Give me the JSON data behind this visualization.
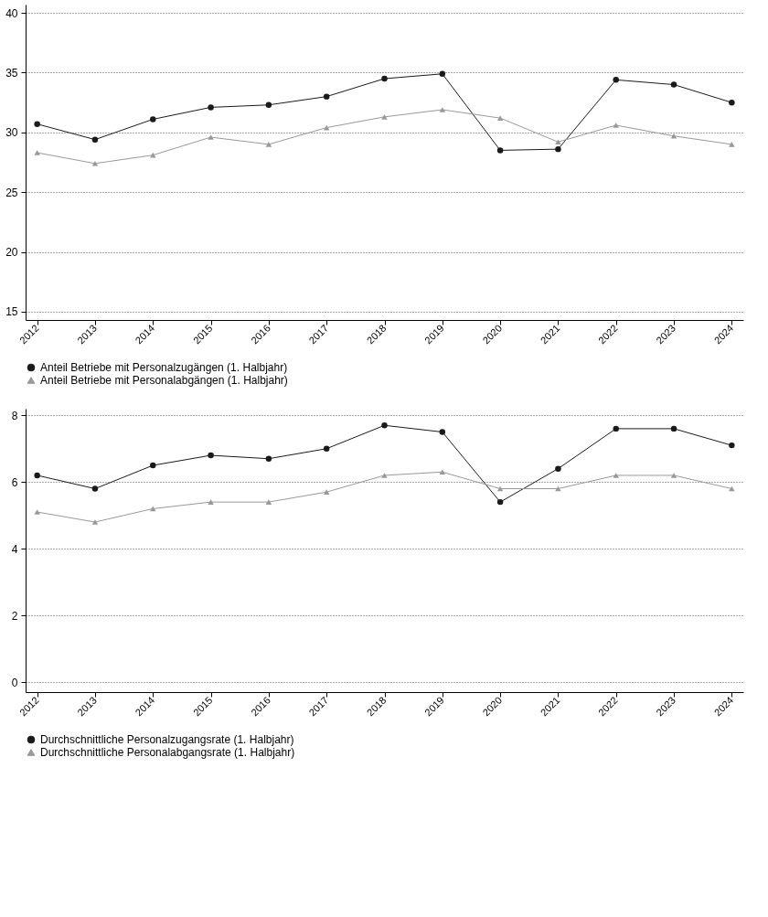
{
  "chart_data": [
    {
      "type": "line",
      "x": [
        2012,
        2013,
        2014,
        2015,
        2016,
        2017,
        2018,
        2019,
        2020,
        2021,
        2022,
        2023,
        2024
      ],
      "series": [
        {
          "name": "Anteil Betriebe mit Personalzugängen (1. Halbjahr)",
          "color": "#1a1a1a",
          "marker": "circle",
          "values": [
            30.7,
            29.4,
            31.1,
            32.1,
            32.3,
            33.0,
            34.5,
            34.9,
            28.5,
            28.6,
            34.4,
            34.0,
            32.5
          ]
        },
        {
          "name": "Anteil Betriebe mit Personalabgängen (1. Halbjahr)",
          "color": "#999999",
          "marker": "triangle",
          "values": [
            28.3,
            27.4,
            28.1,
            29.6,
            29.0,
            30.4,
            31.3,
            31.9,
            31.2,
            29.2,
            30.6,
            29.7,
            29.0
          ]
        }
      ],
      "xlim": [
        2011.8,
        2024.2
      ],
      "xticks": [
        2012,
        2013,
        2014,
        2015,
        2016,
        2017,
        2018,
        2019,
        2020,
        2021,
        2022,
        2023,
        2024
      ],
      "ylim": [
        14.3,
        40.7
      ],
      "yticks": [
        15,
        20,
        25,
        30,
        35,
        40
      ],
      "grid": "y",
      "legend": "bottom",
      "line_style": "solid"
    },
    {
      "type": "line",
      "x": [
        2012,
        2013,
        2014,
        2015,
        2016,
        2017,
        2018,
        2019,
        2020,
        2021,
        2022,
        2023,
        2024
      ],
      "series": [
        {
          "name": "Durchschnittliche Personalzugangsrate (1. Halbjahr)",
          "color": "#1a1a1a",
          "marker": "circle",
          "values": [
            6.2,
            5.8,
            6.5,
            6.8,
            6.7,
            7.0,
            7.7,
            7.5,
            5.4,
            6.4,
            7.6,
            7.6,
            7.1
          ]
        },
        {
          "name": "Durchschnittliche Personalabgangsrate (1. Halbjahr)",
          "color": "#999999",
          "marker": "triangle",
          "values": [
            5.1,
            4.8,
            5.2,
            5.4,
            5.4,
            5.7,
            6.2,
            6.3,
            5.8,
            5.8,
            6.2,
            6.2,
            5.8
          ]
        }
      ],
      "xlim": [
        2011.8,
        2024.2
      ],
      "xticks": [
        2012,
        2013,
        2014,
        2015,
        2016,
        2017,
        2018,
        2019,
        2020,
        2021,
        2022,
        2023,
        2024
      ],
      "ylim": [
        -0.3,
        8.2
      ],
      "yticks": [
        0,
        2,
        4,
        6,
        8
      ],
      "grid": "y",
      "legend": "bottom",
      "line_style": "solid"
    }
  ]
}
